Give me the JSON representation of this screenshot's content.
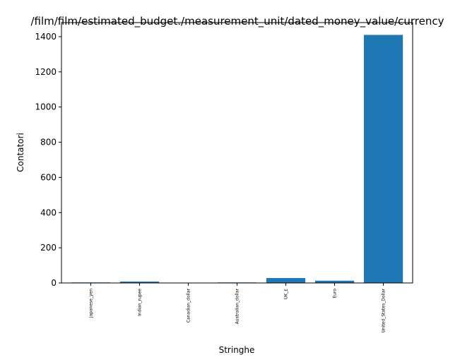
{
  "chart_data": {
    "type": "bar",
    "title": "/film/film/estimated_budget./measurement_unit/dated_money_value/currency",
    "xlabel": "Stringhe",
    "ylabel": "Contatori",
    "categories": [
      "Japanese_yen",
      "Indian_rupee",
      "Canadian_dollar",
      "Australian_dollar",
      "UK_£",
      "Euro",
      "United_States_Dollar"
    ],
    "values": [
      3,
      8,
      1,
      3,
      28,
      13,
      1410
    ],
    "ylim": [
      0,
      1480
    ],
    "yticks": [
      0,
      200,
      400,
      600,
      800,
      1000,
      1200,
      1400
    ],
    "bar_color": "#1f77b4",
    "grid": false,
    "legend": "none"
  }
}
